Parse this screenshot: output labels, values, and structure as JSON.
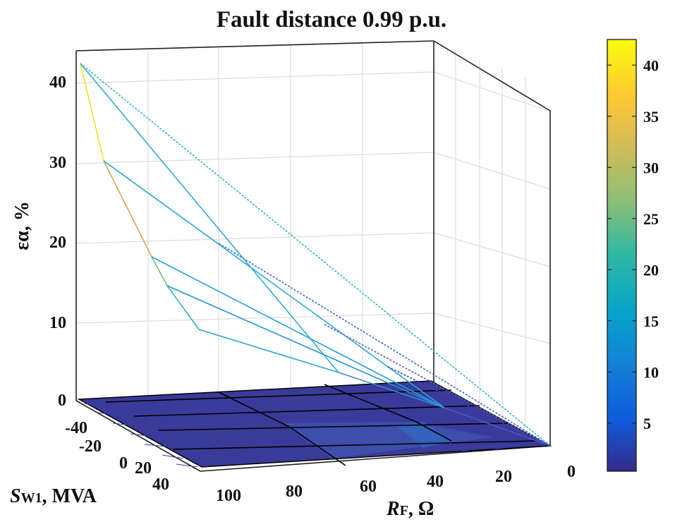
{
  "chart_data": {
    "type": "surface",
    "title": "Fault distance 0.99 p.u.",
    "zlabel": "εα, %",
    "xlabel": "RF, Ω",
    "ylabel": "SW1, MVA",
    "x_ticks": [
      "100",
      "80",
      "60",
      "40",
      "20",
      "0"
    ],
    "y_ticks": [
      "-40",
      "-20",
      "0",
      "20",
      "40"
    ],
    "z_ticks": [
      "0",
      "10",
      "20",
      "30",
      "40"
    ],
    "zlim": [
      0,
      45
    ],
    "colorbar": {
      "ticks": [
        "5",
        "10",
        "15",
        "20",
        "25",
        "30",
        "35",
        "40"
      ],
      "range": [
        0.3,
        42.5
      ],
      "colormap": "parula"
    },
    "surface_peak_edge": {
      "description_points": [
        {
          "RF": 0,
          "SW1": -40,
          "eps": 42.0
        },
        {
          "RF": 0,
          "SW1": -20,
          "eps": 30.0
        },
        {
          "RF": 0,
          "SW1": 0,
          "eps": 18.0
        },
        {
          "RF": 0,
          "SW1": 20,
          "eps": 14.0
        },
        {
          "RF": 0,
          "SW1": 40,
          "eps": 8.0
        }
      ]
    }
  },
  "labels": {
    "title": "Fault distance 0.99 p.u.",
    "z_axis_main": "εα, %",
    "x_axis_main": "R",
    "x_axis_sub": "F",
    "x_axis_unit": ", Ω",
    "y_axis_main": "S",
    "y_axis_sub": "W1",
    "y_axis_unit": ", MVA"
  }
}
